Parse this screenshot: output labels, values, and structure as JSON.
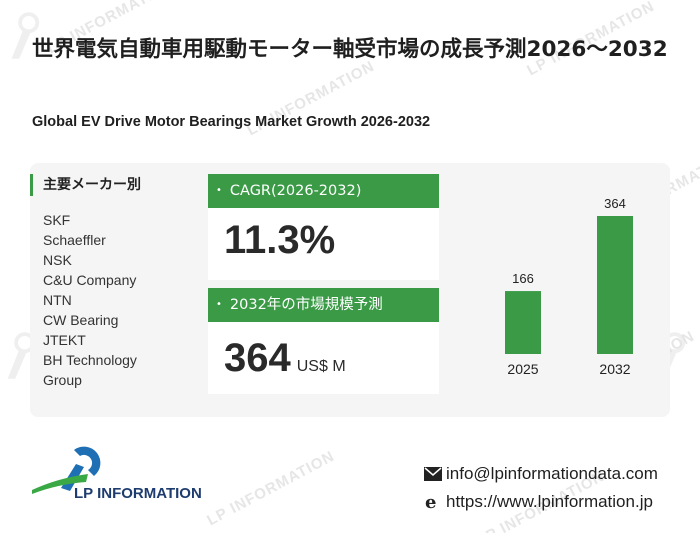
{
  "title_jp": "世界電気自動車用駆動モーター軸受市場の成長予測2026～2032",
  "title_en": "Global EV Drive Motor Bearings Market Growth 2026-2032",
  "watermark_text": "LP INFORMATION",
  "makers": {
    "title": "主要メーカー別",
    "items": [
      "SKF",
      "Schaeffler",
      "NSK",
      "C&U Company",
      "NTN",
      "CW Bearing",
      "JTEKT",
      "BH Technology",
      "Group"
    ]
  },
  "cagr": {
    "label": "CAGR(2026-2032)",
    "value": "11.3%"
  },
  "market": {
    "label": "2032年の市場規模予測",
    "value": "364",
    "unit": "US$ M"
  },
  "chart_data": {
    "type": "bar",
    "categories": [
      "2025",
      "2032"
    ],
    "values": [
      166,
      364
    ],
    "data_labels": [
      "166",
      "364"
    ],
    "color": "#3a9a46",
    "grid": false,
    "legend": "none"
  },
  "footer": {
    "logo_text": "LP INFORMATION",
    "email": "info@lpinformationdata.com",
    "website": "https://www.lpinformation.jp"
  },
  "colors": {
    "accent": "#3a9a46",
    "panel": "#f4f5f4",
    "logo_blue": "#1f6fb5",
    "logo_green": "#3aa845"
  },
  "icons": [
    "mail-icon",
    "browser-e-icon",
    "lp-logo-icon"
  ]
}
